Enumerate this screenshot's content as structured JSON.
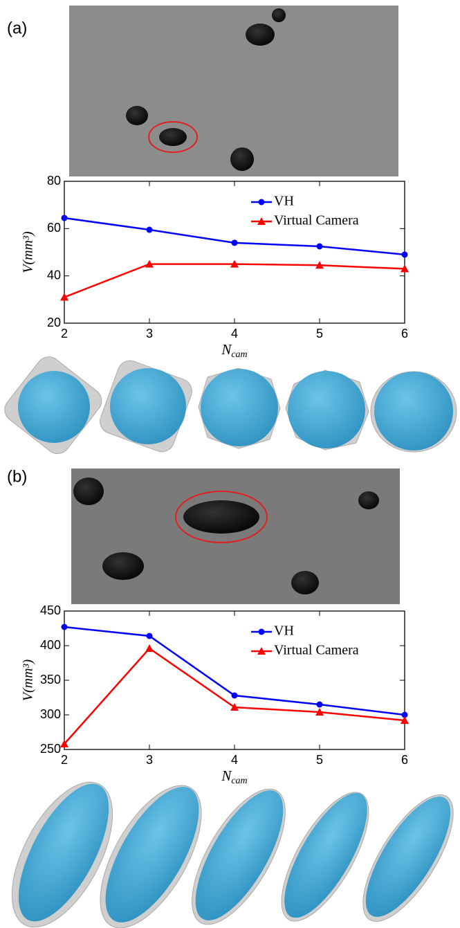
{
  "chart_data": [
    {
      "type": "line",
      "panel_label": "(a)",
      "ylabel": "V(mm³)",
      "xlabel": [
        "N",
        "cam"
      ],
      "x": [
        2,
        3,
        4,
        5,
        6
      ],
      "xlim": [
        2,
        6
      ],
      "xticks": [
        2,
        3,
        4,
        5,
        6
      ],
      "ylim": [
        20,
        80
      ],
      "yticks": [
        20,
        40,
        60,
        80
      ],
      "legend": "upper right",
      "series": [
        {
          "name": "VH",
          "color": "#0000ff",
          "marker": "circle",
          "values": [
            64.5,
            59.5,
            54,
            52.5,
            49
          ]
        },
        {
          "name": "Virtual Camera",
          "color": "#ff0000",
          "marker": "triangle",
          "values": [
            31,
            45,
            45,
            44.5,
            43
          ]
        }
      ]
    },
    {
      "type": "line",
      "panel_label": "(b)",
      "ylabel": "V(mm³)",
      "xlabel": [
        "N",
        "cam"
      ],
      "x": [
        2,
        3,
        4,
        5,
        6
      ],
      "xlim": [
        2,
        6
      ],
      "xticks": [
        2,
        3,
        4,
        5,
        6
      ],
      "ylim": [
        250,
        450
      ],
      "yticks": [
        250,
        300,
        350,
        400,
        450
      ],
      "legend": "upper right",
      "series": [
        {
          "name": "VH",
          "color": "#0000ff",
          "marker": "circle",
          "values": [
            427,
            414,
            328,
            315,
            300
          ]
        },
        {
          "name": "Virtual Camera",
          "color": "#ff0000",
          "marker": "triangle",
          "values": [
            258,
            396,
            311,
            304,
            292
          ]
        }
      ]
    }
  ]
}
